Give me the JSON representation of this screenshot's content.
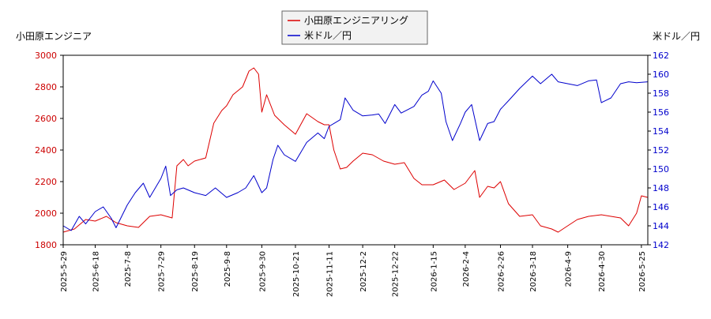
{
  "chart_data": {
    "type": "line",
    "left_axis_label": "小田原エンジニア",
    "right_axis_label": "米ドル／円",
    "legend": [
      "小田原エンジニアリング",
      "米ドル／円"
    ],
    "legend_position": "top-center",
    "grid": false,
    "colors": {
      "stock": "#dd0000",
      "fx": "#0000cc",
      "axis": "#000000"
    },
    "y_left": {
      "min": 1800,
      "max": 3000,
      "ticks": [
        1800,
        2000,
        2200,
        2400,
        2600,
        2800,
        3000
      ]
    },
    "y_right": {
      "min": 142,
      "max": 162,
      "ticks": [
        142,
        144,
        146,
        148,
        150,
        152,
        154,
        156,
        158,
        160,
        162
      ]
    },
    "x_range": [
      "2025-05-29",
      "2026-05-29"
    ],
    "x_ticks": [
      "2025-5-29",
      "2025-6-18",
      "2025-7-8",
      "2025-7-29",
      "2025-8-19",
      "2025-9-8",
      "2025-9-30",
      "2025-10-21",
      "2025-11-11",
      "2025-12-2",
      "2025-12-22",
      "2026-1-15",
      "2026-2-4",
      "2026-2-26",
      "2026-3-18",
      "2026-4-9",
      "2026-4-30",
      "2026-5-25"
    ],
    "series": [
      {
        "name": "小田原エンジニアリング",
        "axis": "left",
        "points": [
          [
            "2025-05-29",
            1880
          ],
          [
            "2025-06-05",
            1900
          ],
          [
            "2025-06-12",
            1960
          ],
          [
            "2025-06-18",
            1950
          ],
          [
            "2025-06-25",
            1980
          ],
          [
            "2025-07-01",
            1940
          ],
          [
            "2025-07-08",
            1920
          ],
          [
            "2025-07-15",
            1910
          ],
          [
            "2025-07-22",
            1980
          ],
          [
            "2025-07-29",
            1990
          ],
          [
            "2025-08-05",
            1970
          ],
          [
            "2025-08-08",
            2300
          ],
          [
            "2025-08-12",
            2340
          ],
          [
            "2025-08-15",
            2300
          ],
          [
            "2025-08-19",
            2330
          ],
          [
            "2025-08-26",
            2350
          ],
          [
            "2025-08-31",
            2570
          ],
          [
            "2025-09-05",
            2650
          ],
          [
            "2025-09-08",
            2680
          ],
          [
            "2025-09-12",
            2750
          ],
          [
            "2025-09-18",
            2800
          ],
          [
            "2025-09-22",
            2900
          ],
          [
            "2025-09-25",
            2920
          ],
          [
            "2025-09-28",
            2880
          ],
          [
            "2025-09-30",
            2640
          ],
          [
            "2025-10-03",
            2750
          ],
          [
            "2025-10-08",
            2620
          ],
          [
            "2025-10-14",
            2560
          ],
          [
            "2025-10-21",
            2500
          ],
          [
            "2025-10-28",
            2630
          ],
          [
            "2025-11-04",
            2580
          ],
          [
            "2025-11-08",
            2560
          ],
          [
            "2025-11-11",
            2560
          ],
          [
            "2025-11-14",
            2400
          ],
          [
            "2025-11-18",
            2280
          ],
          [
            "2025-11-22",
            2290
          ],
          [
            "2025-11-26",
            2330
          ],
          [
            "2025-12-02",
            2380
          ],
          [
            "2025-12-08",
            2370
          ],
          [
            "2025-12-15",
            2330
          ],
          [
            "2025-12-22",
            2310
          ],
          [
            "2025-12-28",
            2320
          ],
          [
            "2026-01-03",
            2220
          ],
          [
            "2026-01-08",
            2180
          ],
          [
            "2026-01-15",
            2180
          ],
          [
            "2026-01-22",
            2210
          ],
          [
            "2026-01-28",
            2150
          ],
          [
            "2026-02-04",
            2190
          ],
          [
            "2026-02-10",
            2270
          ],
          [
            "2026-02-13",
            2100
          ],
          [
            "2026-02-18",
            2170
          ],
          [
            "2026-02-22",
            2160
          ],
          [
            "2026-02-26",
            2200
          ],
          [
            "2026-03-03",
            2060
          ],
          [
            "2026-03-10",
            1980
          ],
          [
            "2026-03-18",
            1990
          ],
          [
            "2026-03-23",
            1920
          ],
          [
            "2026-03-30",
            1900
          ],
          [
            "2026-04-03",
            1880
          ],
          [
            "2026-04-09",
            1920
          ],
          [
            "2026-04-15",
            1960
          ],
          [
            "2026-04-22",
            1980
          ],
          [
            "2026-04-30",
            1990
          ],
          [
            "2026-05-06",
            1980
          ],
          [
            "2026-05-12",
            1970
          ],
          [
            "2026-05-17",
            1920
          ],
          [
            "2026-05-22",
            2000
          ],
          [
            "2026-05-25",
            2110
          ],
          [
            "2026-05-29",
            2100
          ]
        ]
      },
      {
        "name": "米ドル／円",
        "axis": "right",
        "points": [
          [
            "2025-05-29",
            144.0
          ],
          [
            "2025-06-03",
            143.5
          ],
          [
            "2025-06-08",
            145.0
          ],
          [
            "2025-06-12",
            144.2
          ],
          [
            "2025-06-18",
            145.5
          ],
          [
            "2025-06-23",
            146.0
          ],
          [
            "2025-06-28",
            144.8
          ],
          [
            "2025-07-01",
            143.8
          ],
          [
            "2025-07-08",
            146.2
          ],
          [
            "2025-07-13",
            147.5
          ],
          [
            "2025-07-18",
            148.5
          ],
          [
            "2025-07-22",
            147.0
          ],
          [
            "2025-07-29",
            149.0
          ],
          [
            "2025-08-01",
            150.3
          ],
          [
            "2025-08-04",
            147.2
          ],
          [
            "2025-08-08",
            147.8
          ],
          [
            "2025-08-12",
            148.0
          ],
          [
            "2025-08-19",
            147.5
          ],
          [
            "2025-08-26",
            147.2
          ],
          [
            "2025-09-01",
            148.0
          ],
          [
            "2025-09-08",
            147.0
          ],
          [
            "2025-09-15",
            147.5
          ],
          [
            "2025-09-20",
            148.0
          ],
          [
            "2025-09-25",
            149.3
          ],
          [
            "2025-09-30",
            147.5
          ],
          [
            "2025-10-03",
            148.0
          ],
          [
            "2025-10-07",
            151.0
          ],
          [
            "2025-10-10",
            152.5
          ],
          [
            "2025-10-14",
            151.5
          ],
          [
            "2025-10-21",
            150.8
          ],
          [
            "2025-10-28",
            152.8
          ],
          [
            "2025-11-04",
            153.8
          ],
          [
            "2025-11-08",
            153.2
          ],
          [
            "2025-11-11",
            154.5
          ],
          [
            "2025-11-14",
            154.8
          ],
          [
            "2025-11-18",
            155.2
          ],
          [
            "2025-11-21",
            157.5
          ],
          [
            "2025-11-26",
            156.2
          ],
          [
            "2025-12-02",
            155.6
          ],
          [
            "2025-12-08",
            155.7
          ],
          [
            "2025-12-12",
            155.8
          ],
          [
            "2025-12-16",
            154.8
          ],
          [
            "2025-12-22",
            156.8
          ],
          [
            "2025-12-26",
            155.9
          ],
          [
            "2026-01-03",
            156.6
          ],
          [
            "2026-01-08",
            157.8
          ],
          [
            "2026-01-12",
            158.2
          ],
          [
            "2026-01-15",
            159.3
          ],
          [
            "2026-01-20",
            158.0
          ],
          [
            "2026-01-23",
            155.0
          ],
          [
            "2026-01-27",
            153.0
          ],
          [
            "2026-02-01",
            154.8
          ],
          [
            "2026-02-04",
            156.0
          ],
          [
            "2026-02-08",
            156.8
          ],
          [
            "2026-02-13",
            153.0
          ],
          [
            "2026-02-18",
            154.8
          ],
          [
            "2026-02-22",
            155.0
          ],
          [
            "2026-02-26",
            156.3
          ],
          [
            "2026-03-03",
            157.2
          ],
          [
            "2026-03-10",
            158.5
          ],
          [
            "2026-03-18",
            159.8
          ],
          [
            "2026-03-23",
            159.0
          ],
          [
            "2026-03-30",
            160.0
          ],
          [
            "2026-04-03",
            159.2
          ],
          [
            "2026-04-09",
            159.0
          ],
          [
            "2026-04-15",
            158.8
          ],
          [
            "2026-04-22",
            159.3
          ],
          [
            "2026-04-27",
            159.4
          ],
          [
            "2026-04-30",
            157.0
          ],
          [
            "2026-05-06",
            157.5
          ],
          [
            "2026-05-12",
            159.0
          ],
          [
            "2026-05-17",
            159.2
          ],
          [
            "2026-05-22",
            159.1
          ],
          [
            "2026-05-29",
            159.2
          ]
        ]
      }
    ]
  }
}
